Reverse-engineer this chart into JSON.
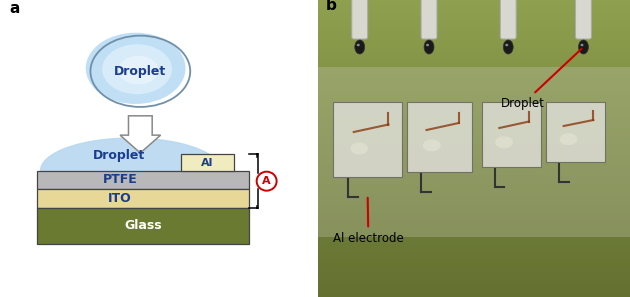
{
  "fig_width": 6.3,
  "fig_height": 2.97,
  "dpi": 100,
  "panel_a_label": "a",
  "panel_b_label": "b",
  "droplet_top_label": "Droplet",
  "droplet_bottom_label": "Droplet",
  "al_label": "Al",
  "ptfe_label": "PTFE",
  "ito_label": "ITO",
  "glass_label": "Glass",
  "ammeter_label": "A",
  "photo_droplet_label": "Droplet",
  "photo_electrode_label": "Al electrode",
  "droplet_top_fill": "#c0dff5",
  "droplet_top_edge": "#7090aa",
  "droplet_top_center": "#e8f4fc",
  "droplet_bottom_fill": "#b8d8f0",
  "al_fill": "#f0ecc0",
  "al_edge": "#444444",
  "ptfe_fill": "#b8b8b8",
  "ptfe_edge": "#444444",
  "ito_fill": "#e8d898",
  "ito_edge": "#444444",
  "glass_fill": "#6a7a30",
  "glass_edge": "#444444",
  "label_blue": "#1a3d8f",
  "label_white": "#ffffff",
  "ammeter_red": "#cc0000",
  "arrow_fill": "#ffffff",
  "arrow_edge": "#888888",
  "bg_color": "#ffffff",
  "photo_bg_top": "#8fa050",
  "photo_bg_bot": "#6a7838",
  "tube_color": "#cccccc",
  "tube_edge": "#888888",
  "drop_dark": "#303030",
  "device_fill": "#e8e8e0",
  "device_edge": "#555555",
  "red_line": "#cc0000"
}
